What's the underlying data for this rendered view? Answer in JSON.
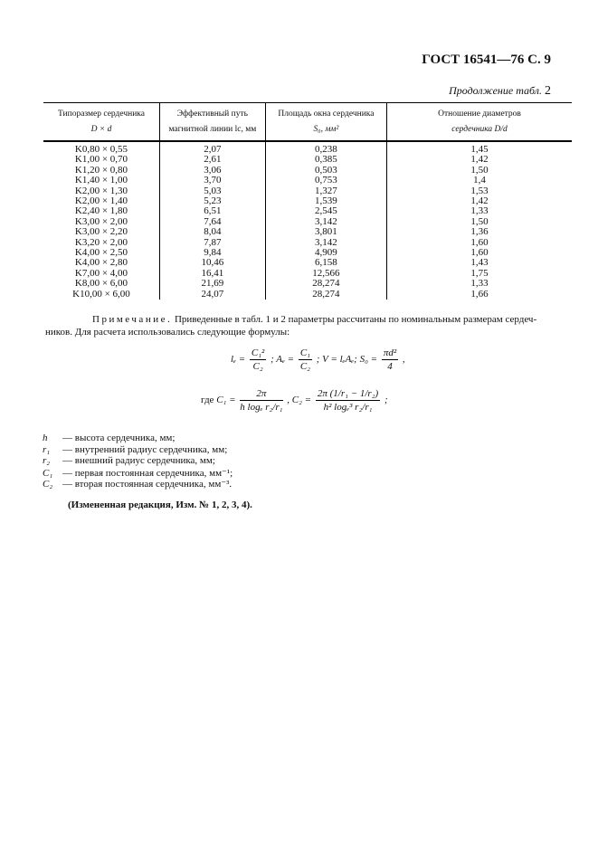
{
  "header": "ГОСТ 16541—76 С. 9",
  "continuation": {
    "text": "Продолжение табл.",
    "num": "2"
  },
  "table": {
    "headers": [
      [
        "Типоразмер сердечника",
        "D × d"
      ],
      [
        "Эффективный путь",
        "магнитной линии lc, мм"
      ],
      [
        "Площадь окна сердечника",
        "S₀, мм²"
      ],
      [
        "Отношение диаметров",
        "сердечника D/d"
      ]
    ],
    "rows": [
      [
        "K0,80 × 0,55",
        "2,07",
        "0,238",
        "1,45"
      ],
      [
        "K1,00 × 0,70",
        "2,61",
        "0,385",
        "1,42"
      ],
      [
        "K1,20 × 0,80",
        "3,06",
        "0,503",
        "1,50"
      ],
      [
        "K1,40 × 1,00",
        "3,70",
        "0,753",
        "1,4"
      ],
      [
        "K2,00 × 1,30",
        "5,03",
        "1,327",
        "1,53"
      ],
      [
        "K2,00 × 1,40",
        "5,23",
        "1,539",
        "1,42"
      ],
      [
        "K2,40 × 1,80",
        "6,51",
        "2,545",
        "1,33"
      ],
      [
        "K3,00 × 2,00",
        "7,64",
        "3,142",
        "1,50"
      ],
      [
        "K3,00 × 2,20",
        "8,04",
        "3,801",
        "1,36"
      ],
      [
        "K3,20 × 2,00",
        "7,87",
        "3,142",
        "1,60"
      ],
      [
        "K4,00 × 2,50",
        "9,84",
        "4,909",
        "1,60"
      ],
      [
        "K4,00 × 2,80",
        "10,46",
        "6,158",
        "1,43"
      ],
      [
        "K7,00 × 4,00",
        "16,41",
        "12,566",
        "1,75"
      ],
      [
        "K8,00 × 6,00",
        "21,69",
        "28,274",
        "1,33"
      ],
      [
        "K10,00 × 6,00",
        "24,07",
        "28,274",
        "1,66"
      ]
    ]
  },
  "note": {
    "label": "Примечание.",
    "line1": "Приведенные в табл. 1 и 2 параметры рассчитаны по номинальным размерам сердеч-",
    "line2": "ников. Для расчета использовались следующие формулы:"
  },
  "formula1": {
    "le": "lₑ =",
    "f1n": "C₁²",
    "f1d": "C₂",
    "ae": "; Aₑ =",
    "f2n": "C₁",
    "f2d": "C₂",
    "v": "; V = lₑAₑ; S₀ =",
    "f3n": "πd²",
    "f3d": "4",
    "end": ","
  },
  "formula2": {
    "where": "где",
    "c1": "C₁ =",
    "c1n": "2π",
    "c1d": "h logₑ r₂/r₁",
    "c2": ",   C₂ =",
    "c2n": "2π (1/r₁ − 1/r₂)",
    "c2d": "h² logₑ³ r₂/r₁",
    "end": ";"
  },
  "legend": [
    {
      "sym": "h",
      "text": "— высота сердечника, мм;"
    },
    {
      "sym": "r₁",
      "text": "— внутренний радиус сердечника, мм;"
    },
    {
      "sym": "r₂",
      "text": "— внешний радиус сердечника, мм;"
    },
    {
      "sym": "C₁",
      "text": "— первая постоянная сердечника, мм⁻¹;"
    },
    {
      "sym": "C₂",
      "text": "— вторая постоянная сердечника, мм⁻³."
    }
  ],
  "changed": "(Измененная редакция, Изм. № 1, 2, 3, 4)."
}
